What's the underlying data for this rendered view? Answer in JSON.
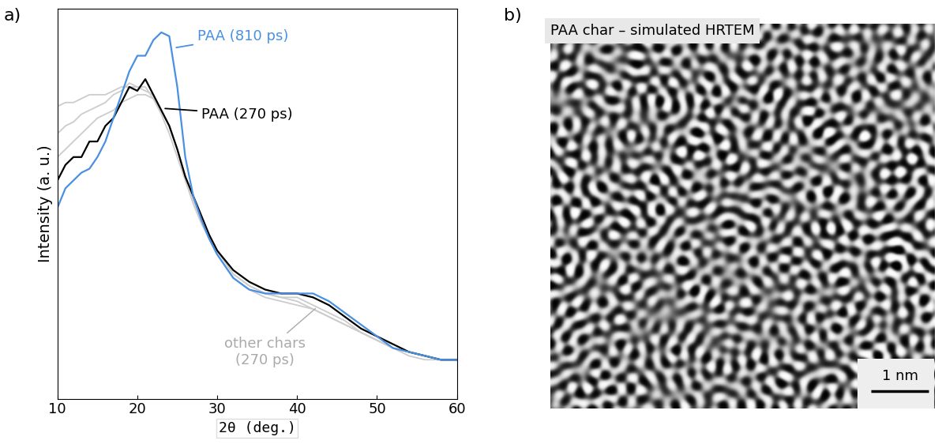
{
  "chart_data": {
    "type": "line",
    "panel_label": "a)",
    "x_label": "2θ (deg.)",
    "y_label": "Intensity (a. u.)",
    "x": [
      10,
      11,
      12,
      13,
      14,
      15,
      16,
      17,
      18,
      19,
      20,
      21,
      22,
      23,
      24,
      25,
      26,
      27,
      28,
      29,
      30,
      32,
      34,
      36,
      38,
      40,
      42,
      44,
      46,
      48,
      50,
      52,
      54,
      56,
      58,
      60
    ],
    "xlim": [
      10,
      60
    ],
    "xticks": [
      10,
      20,
      30,
      40,
      50,
      60
    ],
    "ylim": [
      0,
      1
    ],
    "tick_labels": "x",
    "grid": false,
    "series": [
      {
        "color": "#cccccc",
        "values": [
          0.75,
          0.76,
          0.76,
          0.77,
          0.78,
          0.78,
          0.78,
          0.79,
          0.8,
          0.8,
          0.8,
          0.79,
          0.78,
          0.74,
          0.7,
          0.64,
          0.57,
          0.52,
          0.47,
          0.42,
          0.38,
          0.32,
          0.29,
          0.27,
          0.26,
          0.25,
          0.23,
          0.21,
          0.19,
          0.17,
          0.15,
          0.13,
          0.12,
          0.11,
          0.1,
          0.1
        ]
      },
      {
        "color": "#cccccc",
        "values": [
          0.68,
          0.7,
          0.71,
          0.73,
          0.74,
          0.75,
          0.76,
          0.78,
          0.79,
          0.81,
          0.8,
          0.8,
          0.77,
          0.73,
          0.68,
          0.62,
          0.56,
          0.5,
          0.45,
          0.41,
          0.37,
          0.31,
          0.28,
          0.26,
          0.25,
          0.24,
          0.23,
          0.21,
          0.19,
          0.17,
          0.15,
          0.13,
          0.11,
          0.1,
          0.1,
          0.1
        ]
      },
      {
        "color": "#cccccc",
        "values": [
          0.62,
          0.64,
          0.66,
          0.68,
          0.7,
          0.72,
          0.73,
          0.74,
          0.76,
          0.77,
          0.78,
          0.78,
          0.77,
          0.74,
          0.7,
          0.64,
          0.57,
          0.51,
          0.46,
          0.42,
          0.38,
          0.32,
          0.29,
          0.27,
          0.26,
          0.26,
          0.24,
          0.22,
          0.2,
          0.17,
          0.15,
          0.13,
          0.12,
          0.11,
          0.1,
          0.1
        ]
      },
      {
        "name": "PAA (270 ps)",
        "color": "#000000",
        "values": [
          0.56,
          0.6,
          0.62,
          0.62,
          0.66,
          0.66,
          0.7,
          0.72,
          0.76,
          0.8,
          0.79,
          0.82,
          0.78,
          0.74,
          0.7,
          0.64,
          0.57,
          0.52,
          0.47,
          0.42,
          0.38,
          0.33,
          0.3,
          0.28,
          0.27,
          0.27,
          0.26,
          0.24,
          0.21,
          0.18,
          0.16,
          0.14,
          0.12,
          0.11,
          0.1,
          0.1
        ]
      },
      {
        "name": "PAA (810 ps)",
        "color": "#4a90e2",
        "values": [
          0.49,
          0.54,
          0.56,
          0.58,
          0.59,
          0.62,
          0.66,
          0.72,
          0.78,
          0.84,
          0.88,
          0.88,
          0.92,
          0.94,
          0.93,
          0.8,
          0.62,
          0.52,
          0.46,
          0.41,
          0.37,
          0.31,
          0.28,
          0.27,
          0.27,
          0.27,
          0.27,
          0.25,
          0.22,
          0.19,
          0.16,
          0.13,
          0.12,
          0.11,
          0.1,
          0.1
        ]
      }
    ],
    "annotations": [
      {
        "text": "other chars\n(270 ps)",
        "color": "#aaaaaa"
      }
    ]
  },
  "image": {
    "panel_label": "b)",
    "title": "PAA char – simulated HRTEM",
    "scale_bar": "1 nm"
  }
}
